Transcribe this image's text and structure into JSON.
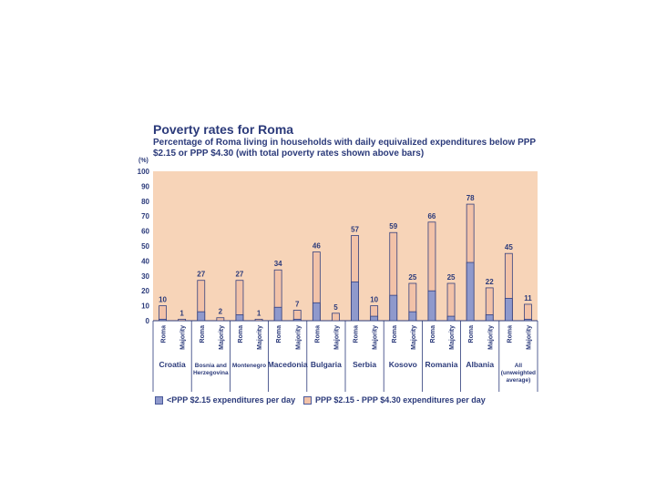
{
  "chart_data": {
    "type": "bar",
    "stacked": true,
    "title": "Poverty rates for Roma",
    "subtitle": "Percentage of Roma living in households with daily equivalized expenditures below PPP $2.15 or PPP $4.30 (with total poverty rates shown above bars)",
    "ylabel": "(%)",
    "ylim": [
      0,
      100
    ],
    "yticks": [
      0,
      10,
      20,
      30,
      40,
      50,
      60,
      70,
      80,
      90,
      100
    ],
    "grid": false,
    "legend_position": "bottom",
    "colors": {
      "background": "#f7d4b8",
      "series_low": "#8f99cc",
      "series_high": "#f2c2a8",
      "outline": "#34407e",
      "text": "#2b3a7a"
    },
    "groups": [
      {
        "name": "Croatia",
        "bars": [
          {
            "label": "Roma",
            "low": 1,
            "total": 10
          },
          {
            "label": "Majority",
            "low": 0,
            "total": 1
          }
        ]
      },
      {
        "name": "Bosnia and Herzegovina",
        "bars": [
          {
            "label": "Roma",
            "low": 6,
            "total": 27
          },
          {
            "label": "Majority",
            "low": 0,
            "total": 2
          }
        ]
      },
      {
        "name": "Montenegro",
        "bars": [
          {
            "label": "Roma",
            "low": 4,
            "total": 27
          },
          {
            "label": "Majority",
            "low": 0,
            "total": 1
          }
        ]
      },
      {
        "name": "Macedonia",
        "bars": [
          {
            "label": "Roma",
            "low": 9,
            "total": 34
          },
          {
            "label": "Majority",
            "low": 1,
            "total": 7
          }
        ]
      },
      {
        "name": "Bulgaria",
        "bars": [
          {
            "label": "Roma",
            "low": 12,
            "total": 46
          },
          {
            "label": "Majority",
            "low": 0,
            "total": 5
          }
        ]
      },
      {
        "name": "Serbia",
        "bars": [
          {
            "label": "Roma",
            "low": 26,
            "total": 57
          },
          {
            "label": "Majority",
            "low": 3,
            "total": 10
          }
        ]
      },
      {
        "name": "Kosovo",
        "bars": [
          {
            "label": "Roma",
            "low": 17,
            "total": 59
          },
          {
            "label": "Majority",
            "low": 6,
            "total": 25
          }
        ]
      },
      {
        "name": "Romania",
        "bars": [
          {
            "label": "Roma",
            "low": 20,
            "total": 66
          },
          {
            "label": "Majority",
            "low": 3,
            "total": 25
          }
        ]
      },
      {
        "name": "Albania",
        "bars": [
          {
            "label": "Roma",
            "low": 39,
            "total": 78
          },
          {
            "label": "Majority",
            "low": 4,
            "total": 22
          }
        ]
      },
      {
        "name": "All (unweighted average)",
        "bars": [
          {
            "label": "Roma",
            "low": 15,
            "total": 45
          },
          {
            "label": "Majority",
            "low": 1,
            "total": 11
          }
        ]
      }
    ],
    "series": [
      {
        "name": "<PPP $2.15 expenditures per day"
      },
      {
        "name": "PPP $2.15 - PPP $4.30 expenditures per day"
      }
    ]
  }
}
